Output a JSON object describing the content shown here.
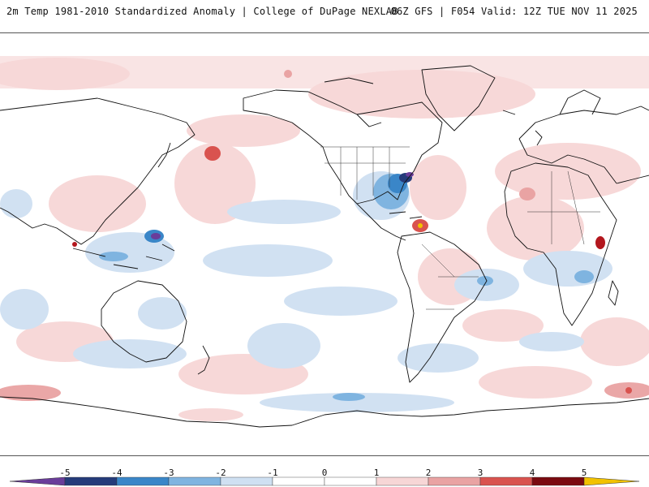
{
  "header": {
    "left_title": "2m Temp 1981-2010 Standardized Anomaly | College of DuPage NEXLAB",
    "right_title": "06Z GFS | F054 Valid: 12Z TUE NOV 11 2025"
  },
  "colors": {
    "neg5": "#6a3d9a",
    "neg4": "#253b7a",
    "neg3": "#3a86c8",
    "neg2": "#7fb4e0",
    "neg1": "#cfe0f2",
    "zero": "#ffffff",
    "pos1": "#f7d6d6",
    "pos2": "#e9a3a3",
    "pos3": "#d9534f",
    "pos4": "#b3171e",
    "pos5": "#7a0a10",
    "over": "#f2c200",
    "coast": "#111111"
  },
  "colorbar": {
    "labels": [
      "-5",
      "-4",
      "-3",
      "-2",
      "-1",
      "0",
      "1",
      "2",
      "3",
      "4",
      "5"
    ]
  }
}
